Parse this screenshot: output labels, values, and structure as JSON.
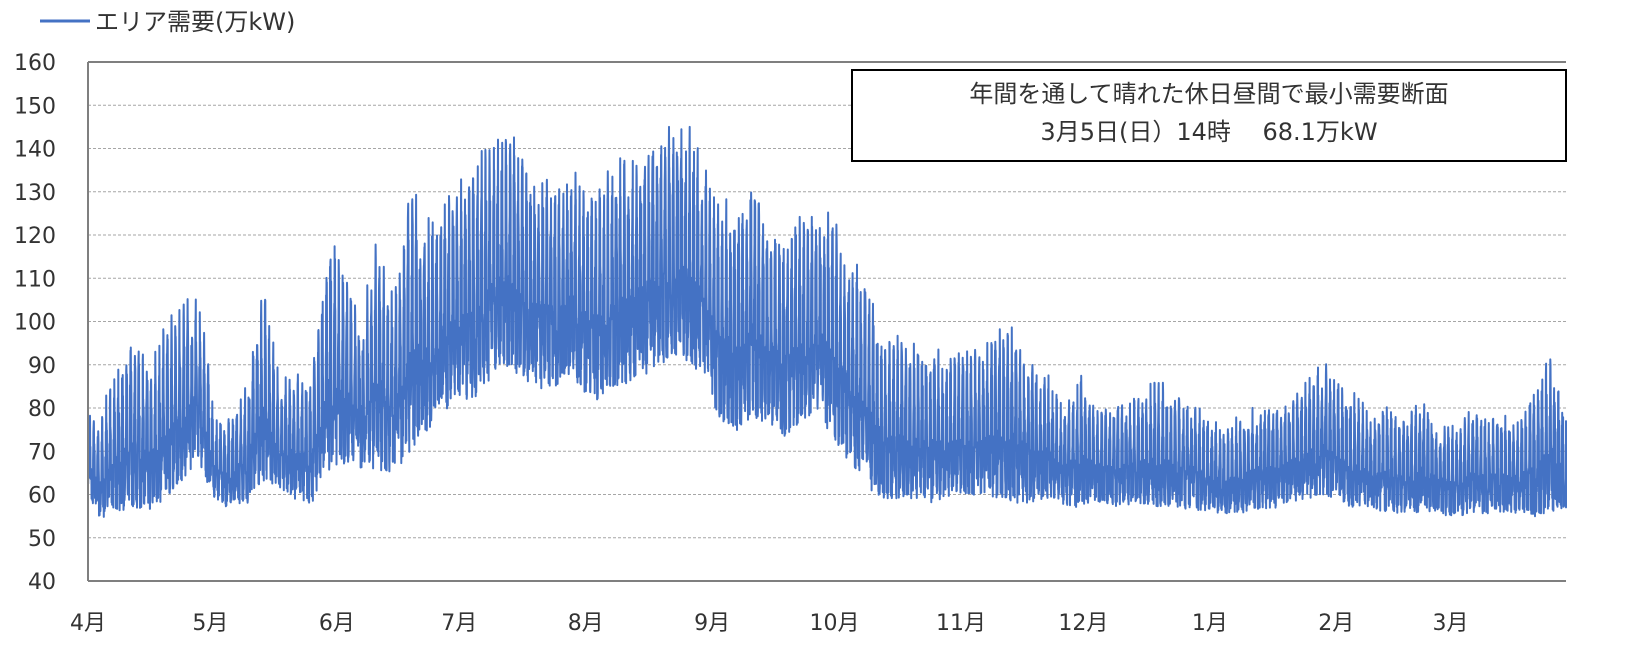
{
  "chart_data": {
    "type": "line",
    "legend": {
      "label": "エリア需要(万kW)",
      "position": "top-left"
    },
    "series": [
      {
        "name": "エリア需要(万kW)",
        "color": "#4472c4",
        "x": [
          "04-01",
          "04-04",
          "04-08",
          "04-12",
          "04-16",
          "04-20",
          "04-24",
          "04-28",
          "05-02",
          "05-06",
          "05-10",
          "05-14",
          "05-18",
          "05-22",
          "05-26",
          "05-30",
          "06-03",
          "06-07",
          "06-11",
          "06-15",
          "06-19",
          "06-23",
          "06-27",
          "07-01",
          "07-05",
          "07-09",
          "07-13",
          "07-17",
          "07-21",
          "07-25",
          "07-29",
          "08-02",
          "08-06",
          "08-10",
          "08-14",
          "08-18",
          "08-22",
          "08-26",
          "08-30",
          "09-03",
          "09-07",
          "09-11",
          "09-15",
          "09-19",
          "09-23",
          "09-27",
          "10-01",
          "10-05",
          "10-09",
          "10-13",
          "10-17",
          "10-21",
          "10-25",
          "10-29",
          "11-02",
          "11-06",
          "11-10",
          "11-14",
          "11-18",
          "11-22",
          "11-26",
          "11-30",
          "12-04",
          "12-08",
          "12-12",
          "12-16",
          "12-20",
          "12-24",
          "12-28",
          "01-01",
          "01-05",
          "01-09",
          "01-13",
          "01-17",
          "01-21",
          "01-25",
          "01-29",
          "02-02",
          "02-06",
          "02-10",
          "02-14",
          "02-18",
          "02-22",
          "02-26",
          "03-02",
          "03-06",
          "03-10",
          "03-14",
          "03-18",
          "03-22",
          "03-26",
          "03-30"
        ],
        "max": [
          80,
          81,
          93,
          100,
          94,
          103,
          109,
          113,
          81,
          80,
          89,
          113,
          89,
          90,
          92,
          127,
          115,
          106,
          127,
          109,
          141,
          131,
          134,
          136,
          146,
          149,
          151,
          143,
          141,
          136,
          143,
          135,
          141,
          144,
          147,
          148,
          152,
          153,
          141,
          136,
          132,
          141,
          129,
          127,
          131,
          132,
          131,
          121,
          116,
          100,
          100,
          98,
          99,
          96,
          97,
          97,
          104,
          103,
          94,
          92,
          83,
          92,
          83,
          84,
          84,
          87,
          90,
          85,
          84,
          80,
          78,
          81,
          84,
          84,
          87,
          91,
          94,
          88,
          86,
          80,
          85,
          80,
          86,
          80,
          78,
          82,
          81,
          81,
          81,
          89,
          98,
          78
        ],
        "min": [
          60,
          53,
          55,
          56,
          55,
          58,
          62,
          67,
          58,
          56,
          57,
          62,
          61,
          58,
          57,
          64,
          66,
          65,
          64,
          64,
          68,
          72,
          78,
          80,
          80,
          85,
          88,
          85,
          82,
          84,
          85,
          81,
          80,
          84,
          85,
          88,
          90,
          89,
          86,
          75,
          73,
          76,
          75,
          72,
          75,
          78,
          70,
          66,
          60,
          58,
          58,
          58,
          57,
          58,
          59,
          59,
          58,
          57,
          57,
          58,
          57,
          56,
          58,
          56,
          57,
          57,
          56,
          56,
          56,
          55,
          55,
          55,
          56,
          56,
          57,
          58,
          59,
          57,
          56,
          56,
          55,
          55,
          55,
          55,
          54,
          55,
          55,
          55,
          55,
          54,
          55,
          55
        ]
      }
    ],
    "xlabels": [
      "4月",
      "5月",
      "6月",
      "7月",
      "8月",
      "9月",
      "10月",
      "11月",
      "12月",
      "1月",
      "2月",
      "3月"
    ],
    "yticks": [
      40,
      50,
      60,
      70,
      80,
      90,
      100,
      110,
      120,
      130,
      140,
      150,
      160
    ],
    "ylim": [
      40,
      160
    ],
    "grid": true,
    "annotation": {
      "line1": "年間を通して晴れた休日昼間で最小需要断面",
      "line2": "3月5日(日）14時　 68.1万kW"
    }
  }
}
